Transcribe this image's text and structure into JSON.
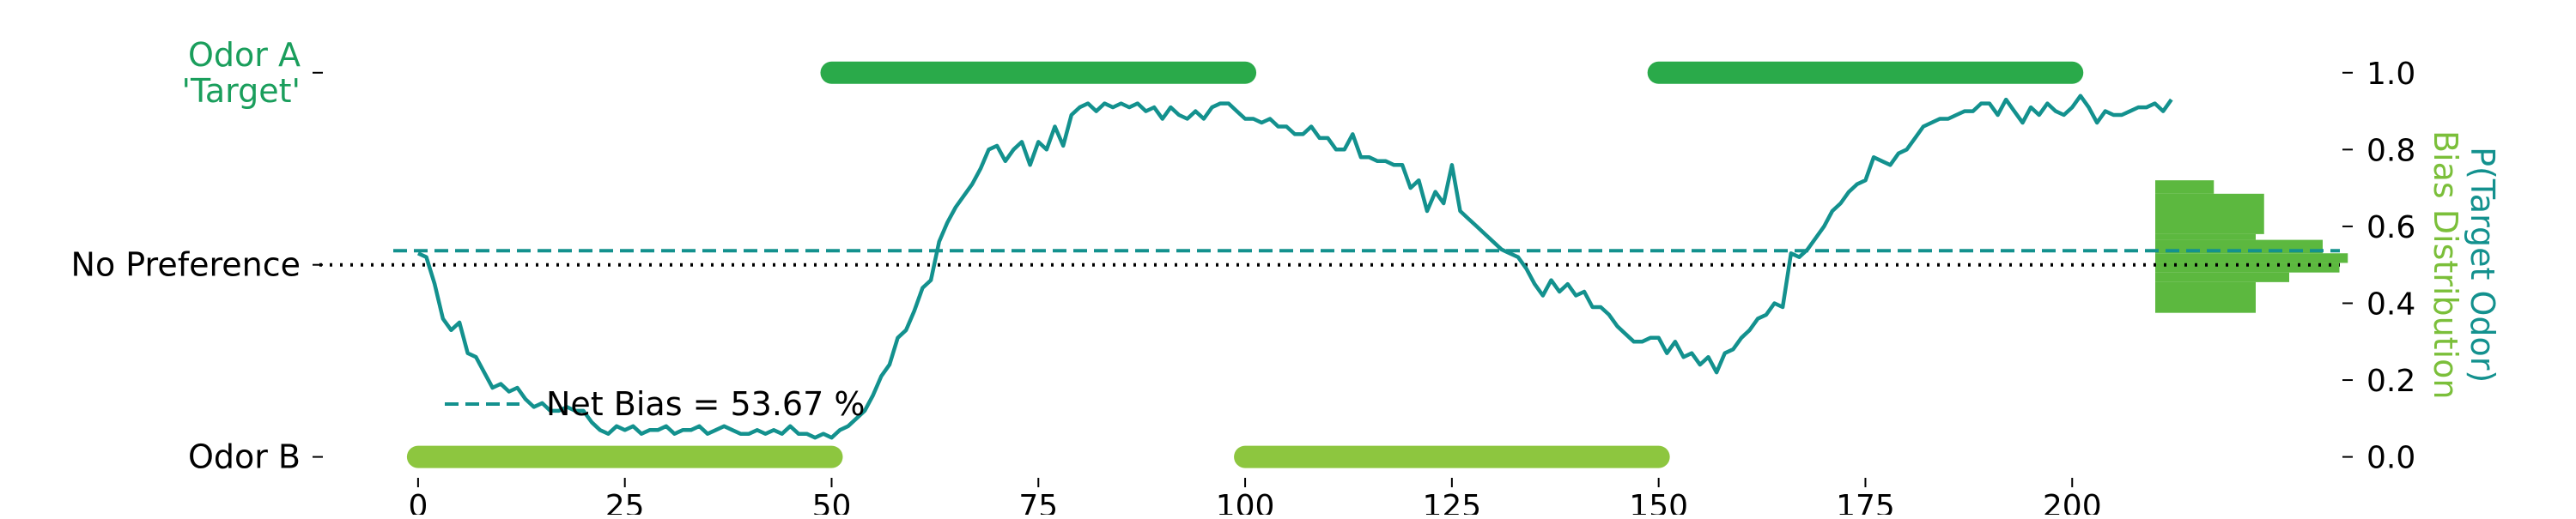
{
  "chart_data": {
    "type": "line",
    "x_ticks": [
      0,
      25,
      50,
      75,
      100,
      125,
      150,
      175,
      200
    ],
    "left_axis_labels": [
      {
        "text": "Odor A\n'Target'",
        "y": 1.0,
        "color": "#1a9e5c"
      },
      {
        "text": "No Preference",
        "y": 0.5,
        "color": "#000000"
      },
      {
        "text": "Odor B",
        "y": 0.0,
        "color": "#000000"
      }
    ],
    "right_axis": {
      "ticks": [
        "0.0",
        "0.2",
        "0.4",
        "0.6",
        "0.8",
        "1.0"
      ],
      "ylim": [
        -0.05,
        1.1
      ],
      "label_line1": "P(Target Odor)",
      "label_line1_color": "#13918e",
      "label_line2": "Bias Distribution",
      "label_line2_color": "#7bbf3a"
    },
    "xlim": [
      -3,
      236
    ],
    "legend": {
      "text": "Net Bias = 53.67 %",
      "placement": "lower-left"
    },
    "net_bias": 0.5367,
    "no_preference": 0.5,
    "target_blocks": [
      [
        50,
        100
      ],
      [
        150,
        200
      ]
    ],
    "other_blocks": [
      [
        0,
        50
      ],
      [
        100,
        150
      ]
    ],
    "colors": {
      "target_block": "#2aaa4a",
      "other_block": "#8dc63f",
      "line": "#13918e",
      "histogram": "#5cb83f",
      "no_pref_line": "#000000"
    },
    "series": [
      {
        "values": [
          0.53,
          0.52,
          0.45,
          0.36,
          0.33,
          0.35,
          0.27,
          0.26,
          0.22,
          0.18,
          0.19,
          0.17,
          0.18,
          0.15,
          0.13,
          0.14,
          0.12,
          0.12,
          0.13,
          0.12,
          0.12,
          0.09,
          0.07,
          0.06,
          0.08,
          0.07,
          0.08,
          0.06,
          0.07,
          0.07,
          0.08,
          0.06,
          0.07,
          0.07,
          0.08,
          0.06,
          0.07,
          0.08,
          0.07,
          0.06,
          0.06,
          0.07,
          0.06,
          0.07,
          0.06,
          0.08,
          0.06,
          0.06,
          0.05,
          0.06,
          0.05,
          0.07,
          0.08,
          0.1,
          0.12,
          0.16,
          0.21,
          0.24,
          0.31,
          0.33,
          0.38,
          0.44,
          0.46,
          0.56,
          0.61,
          0.65,
          0.68,
          0.71,
          0.75,
          0.8,
          0.81,
          0.77,
          0.8,
          0.82,
          0.76,
          0.82,
          0.8,
          0.86,
          0.81,
          0.89,
          0.91,
          0.92,
          0.9,
          0.92,
          0.91,
          0.92,
          0.91,
          0.92,
          0.9,
          0.91,
          0.88,
          0.91,
          0.89,
          0.88,
          0.9,
          0.88,
          0.91,
          0.92,
          0.92,
          0.9,
          0.88,
          0.88,
          0.87,
          0.88,
          0.86,
          0.86,
          0.84,
          0.84,
          0.86,
          0.83,
          0.83,
          0.8,
          0.8,
          0.84,
          0.78,
          0.78,
          0.77,
          0.77,
          0.76,
          0.76,
          0.7,
          0.72,
          0.64,
          0.69,
          0.66,
          0.76,
          0.64,
          0.62,
          0.6,
          0.58,
          0.56,
          0.54,
          0.53,
          0.52,
          0.49,
          0.45,
          0.42,
          0.46,
          0.43,
          0.45,
          0.42,
          0.43,
          0.39,
          0.39,
          0.37,
          0.34,
          0.32,
          0.3,
          0.3,
          0.31,
          0.31,
          0.27,
          0.3,
          0.26,
          0.27,
          0.24,
          0.26,
          0.22,
          0.27,
          0.28,
          0.31,
          0.33,
          0.36,
          0.37,
          0.4,
          0.39,
          0.53,
          0.52,
          0.54,
          0.57,
          0.6,
          0.64,
          0.66,
          0.69,
          0.71,
          0.72,
          0.78,
          0.77,
          0.76,
          0.79,
          0.8,
          0.83,
          0.86,
          0.87,
          0.88,
          0.88,
          0.89,
          0.9,
          0.9,
          0.92,
          0.92,
          0.89,
          0.93,
          0.9,
          0.87,
          0.91,
          0.89,
          0.92,
          0.9,
          0.89,
          0.91,
          0.94,
          0.91,
          0.87,
          0.9,
          0.89,
          0.89,
          0.9,
          0.91,
          0.91,
          0.92,
          0.9,
          0.93
        ]
      }
    ],
    "histogram": [
      {
        "y0": 0.375,
        "y1": 0.455,
        "count": 6
      },
      {
        "y0": 0.455,
        "y1": 0.48,
        "count": 8
      },
      {
        "y0": 0.48,
        "y1": 0.505,
        "count": 11
      },
      {
        "y0": 0.505,
        "y1": 0.53,
        "count": 11.5
      },
      {
        "y0": 0.53,
        "y1": 0.565,
        "count": 10
      },
      {
        "y0": 0.565,
        "y1": 0.58,
        "count": 6
      },
      {
        "y0": 0.58,
        "y1": 0.685,
        "count": 6.5
      },
      {
        "y0": 0.685,
        "y1": 0.72,
        "count": 3.5
      }
    ]
  }
}
